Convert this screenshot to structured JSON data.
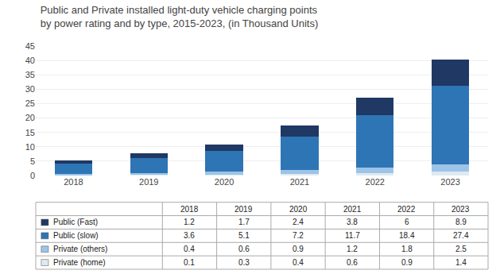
{
  "chart_data": {
    "type": "bar",
    "title": "Public and Private installed light-duty vehicle charging points\nby power rating and by type, 2015-2023, (in Thousand Units)",
    "categories": [
      "2018",
      "2019",
      "2020",
      "2021",
      "2022",
      "2023"
    ],
    "series": [
      {
        "name": "Public (Fast)",
        "values": [
          1.2,
          1.7,
          2.4,
          3.8,
          6.0,
          8.9
        ],
        "color": "#1F3864"
      },
      {
        "name": "Public (slow)",
        "values": [
          3.6,
          5.1,
          7.2,
          11.7,
          18.4,
          27.4
        ],
        "color": "#2E75B6"
      },
      {
        "name": "Private (others)",
        "values": [
          0.4,
          0.6,
          0.9,
          1.2,
          1.8,
          2.5
        ],
        "color": "#9DC3E6"
      },
      {
        "name": "Private (home)",
        "values": [
          0.1,
          0.3,
          0.4,
          0.6,
          0.9,
          1.4
        ],
        "color": "#DEEAF1"
      }
    ],
    "stacked": true,
    "ylim": [
      0,
      45
    ],
    "yticks": [
      0,
      5,
      10,
      15,
      20,
      25,
      30,
      35,
      40,
      45
    ],
    "grid": true
  }
}
